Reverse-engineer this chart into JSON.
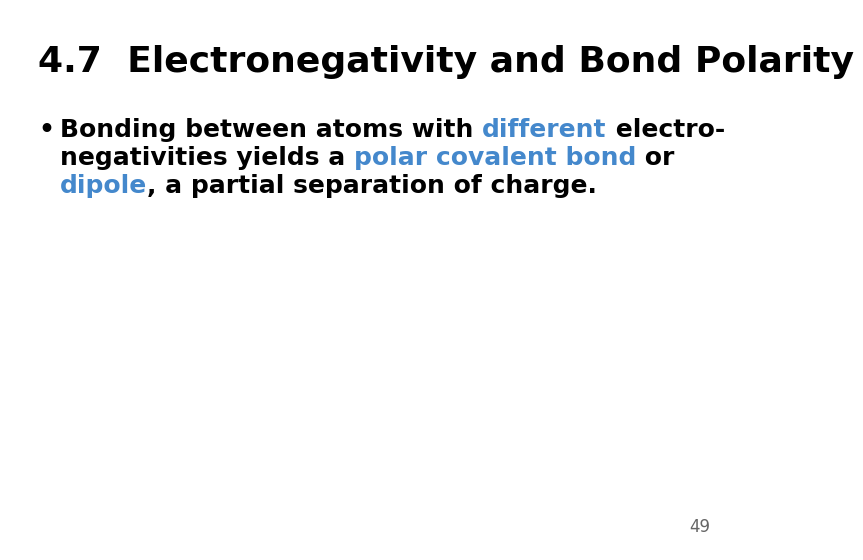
{
  "title": "4.7  Electronegativity and Bond Polarity",
  "title_fontsize": 26,
  "title_color": "#000000",
  "background_color": "#ffffff",
  "page_number": "49",
  "page_num_fontsize": 12,
  "page_num_color": "#666666",
  "bullet_symbol": "•",
  "text_fontsize": 18,
  "black": "#000000",
  "blue": "#4488cc",
  "line1_segments": [
    {
      "text": "Bonding between atoms with ",
      "color": "#000000"
    },
    {
      "text": "different",
      "color": "#4488cc"
    },
    {
      "text": " electro-",
      "color": "#000000"
    }
  ],
  "line2_segments": [
    {
      "text": "negativities yields a ",
      "color": "#000000"
    },
    {
      "text": "polar covalent bond",
      "color": "#4488cc"
    },
    {
      "text": " or",
      "color": "#000000"
    }
  ],
  "line3_segments": [
    {
      "text": "dipole",
      "color": "#4488cc"
    },
    {
      "text": ", a partial separation of charge.",
      "color": "#000000"
    }
  ]
}
